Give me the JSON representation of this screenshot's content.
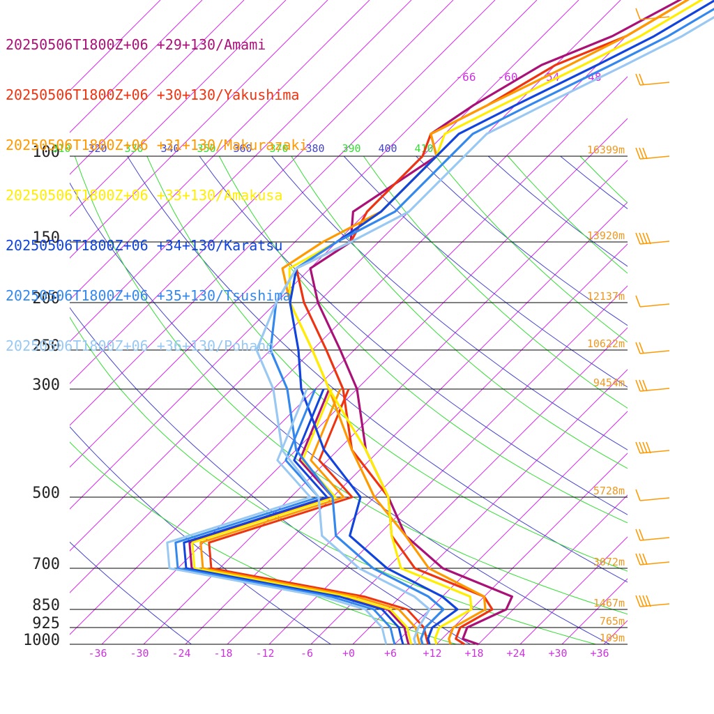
{
  "chart_data": {
    "type": "line",
    "title": "",
    "series": [
      {
        "name": "20250506T1800Z+06 +29+130/Amami",
        "color": "#aa1177",
        "points": [
          [
            0,
            870
          ],
          [
            4,
            830
          ],
          [
            6,
            790
          ],
          [
            14,
            520
          ],
          [
            14,
            480
          ],
          [
            18,
            400
          ],
          [
            28,
            220
          ],
          [
            27,
            150
          ],
          [
            30,
            135
          ],
          [
            46,
            103
          ],
          [
            66,
            100
          ],
          [
            70,
            85
          ],
          [
            70,
            75
          ],
          [
            100,
            70
          ],
          [
            108,
            62
          ],
          [
            112,
            55
          ],
          [
            140,
            48
          ],
          [
            172,
            42
          ],
          [
            218,
            36
          ],
          [
            286,
            32
          ],
          [
            312,
            30
          ]
        ],
        "temps": [
          18,
          16,
          14,
          18,
          18,
          16,
          18,
          5,
          -3,
          -40,
          -20,
          -32,
          -52,
          -57,
          -56,
          -60,
          -67,
          -62,
          -58,
          -50,
          -46
        ]
      },
      {
        "name": "20250506T1800Z+06 +30+130/Yakushima",
        "color": "#ee3311",
        "points": [
          [
            0,
            880
          ],
          [
            6,
            850
          ],
          [
            28,
            640
          ],
          [
            36,
            520
          ],
          [
            40,
            470
          ],
          [
            52,
            410
          ],
          [
            70,
            360
          ],
          [
            100,
            300
          ],
          [
            145,
            240
          ],
          [
            200,
            200
          ],
          [
            250,
            180
          ],
          [
            300,
            170
          ],
          [
            312,
            168
          ]
        ],
        "temps": [
          17,
          15,
          15,
          17,
          14,
          4,
          -8,
          -52,
          -55,
          -60,
          -66,
          -54,
          -46
        ]
      },
      {
        "name": "20250506T1800Z+06 +31+130/Makurazaki",
        "color": "#ff9900",
        "points": [
          [
            0,
            890
          ],
          [
            10,
            850
          ],
          [
            30,
            690
          ],
          [
            38,
            540
          ],
          [
            44,
            500
          ],
          [
            60,
            420
          ],
          [
            95,
            340
          ],
          [
            145,
            250
          ],
          [
            165,
            210
          ],
          [
            200,
            190
          ],
          [
            250,
            175
          ],
          [
            312,
            170
          ]
        ],
        "temps": [
          14,
          12,
          12,
          14,
          14,
          4,
          -8,
          -54,
          -56,
          -62,
          -66,
          -52
        ]
      },
      {
        "name": "20250506T1800Z+06 +33+130/Amakusa",
        "color": "#ffee00",
        "points": [
          [
            0,
            900
          ],
          [
            10,
            860
          ],
          [
            30,
            700
          ],
          [
            38,
            540
          ],
          [
            60,
            420
          ],
          [
            95,
            340
          ],
          [
            145,
            250
          ],
          [
            170,
            210
          ],
          [
            200,
            200
          ],
          [
            250,
            180
          ],
          [
            312,
            170
          ]
        ],
        "temps": [
          12,
          11,
          14,
          12,
          8,
          2,
          -10,
          -54,
          -56,
          -62,
          -50
        ]
      },
      {
        "name": "20250506T1800Z+06 +34+130/Karatsu",
        "color": "#1144dd",
        "points": [
          [
            0,
            910
          ],
          [
            12,
            860
          ],
          [
            30,
            710
          ],
          [
            40,
            560
          ],
          [
            60,
            420
          ],
          [
            95,
            340
          ],
          [
            145,
            250
          ],
          [
            170,
            215
          ],
          [
            200,
            200
          ],
          [
            250,
            180
          ],
          [
            312,
            170
          ]
        ],
        "temps": [
          11,
          10,
          12,
          8,
          2,
          -8,
          -12,
          -56,
          -54,
          -60,
          -52
        ]
      },
      {
        "name": "20250506T1800Z+06 +35+130/Tsushima",
        "color": "#3388ee",
        "points": [
          [
            0,
            920
          ],
          [
            12,
            870
          ],
          [
            30,
            720
          ],
          [
            40,
            570
          ],
          [
            60,
            430
          ],
          [
            95,
            340
          ],
          [
            145,
            255
          ],
          [
            170,
            220
          ],
          [
            200,
            205
          ],
          [
            250,
            185
          ],
          [
            312,
            175
          ]
        ],
        "temps": [
          10,
          9,
          11,
          6,
          0,
          -10,
          -14,
          -58,
          -56,
          -60,
          -54
        ]
      },
      {
        "name": "20250506T1800Z+06 +36+130/Pohang",
        "color": "#99c8f2",
        "points": [
          [
            0,
            930
          ],
          [
            12,
            880
          ],
          [
            30,
            730
          ],
          [
            40,
            580
          ],
          [
            60,
            440
          ],
          [
            95,
            350
          ],
          [
            145,
            260
          ],
          [
            170,
            230
          ],
          [
            200,
            210
          ],
          [
            250,
            190
          ],
          [
            312,
            180
          ]
        ],
        "temps": [
          9,
          8,
          10,
          5,
          -2,
          -12,
          -16,
          -56,
          -54,
          -60,
          -56
        ]
      }
    ],
    "pressure_levels": [
      "100",
      "150",
      "200",
      "250",
      "300",
      "500",
      "700",
      "850",
      "925",
      "1000"
    ],
    "height_labels": [
      "16399m",
      "13920m",
      "12137m",
      "10622m",
      "9454m",
      "5728m",
      "3072m",
      "1467m",
      "765m",
      "109m"
    ],
    "x_tick_labels": [
      "-36",
      "-30",
      "-24",
      "-18",
      "-12",
      "-6",
      "+0",
      "+6",
      "+12",
      "+18",
      "+24",
      "+30",
      "+36"
    ],
    "theta_labels": [
      "310",
      "320",
      "330",
      "340",
      "350",
      "360",
      "370",
      "380",
      "390",
      "400",
      "410"
    ],
    "top_temp_labels": [
      "-66",
      "-60",
      "-54",
      "-48"
    ],
    "colors": {
      "isobar": "#000000",
      "isotherm": "#cc33dd",
      "dry_adiabat": "#4444cc",
      "moist_adiabat": "#33dd33",
      "height_label": "#ee9922",
      "wind_barb": "#ff9900"
    }
  },
  "legend": [
    {
      "label": "20250506T1800Z+06 +29+130/Amami",
      "color": "#aa1177"
    },
    {
      "label": "20250506T1800Z+06 +30+130/Yakushima",
      "color": "#ee3311"
    },
    {
      "label": "20250506T1800Z+06 +31+130/Makurazaki",
      "color": "#ff9900"
    },
    {
      "label": "20250506T1800Z+06 +33+130/Amakusa",
      "color": "#ffee00"
    },
    {
      "label": "20250506T1800Z+06 +34+130/Karatsu",
      "color": "#1144dd"
    },
    {
      "label": "20250506T1800Z+06 +35+130/Tsushima",
      "color": "#3388ee"
    },
    {
      "label": "20250506T1800Z+06 +36+130/Pohang",
      "color": "#99c8f2"
    }
  ]
}
